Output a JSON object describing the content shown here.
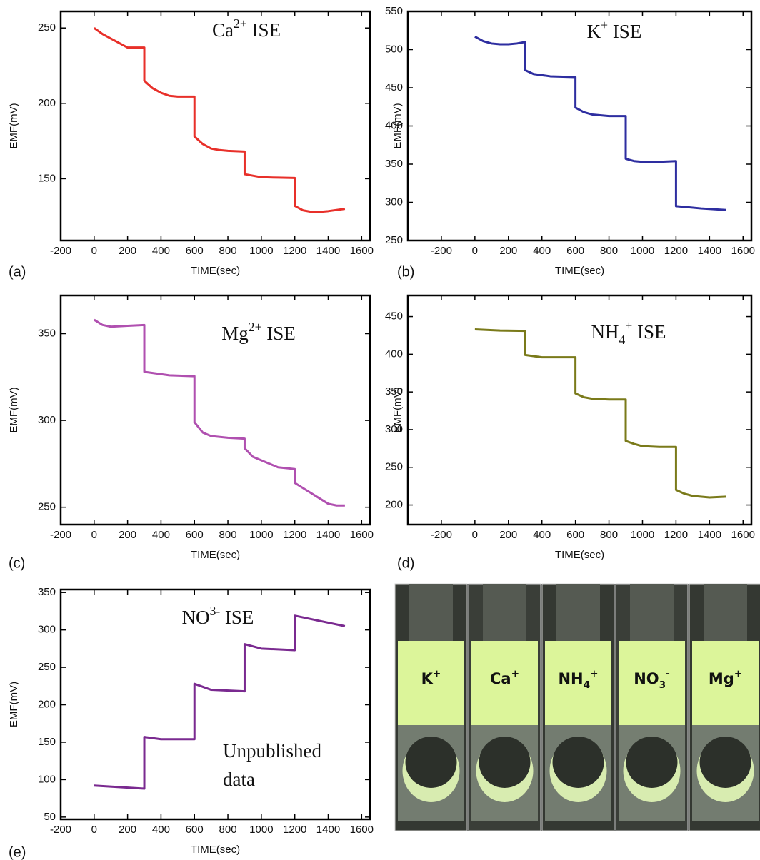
{
  "chart_data": [
    {
      "type": "line",
      "panel_label": "(a)",
      "title": [
        {
          "text": "Ca"
        },
        {
          "text": "2+",
          "sup": true
        },
        {
          "text": " ISE"
        }
      ],
      "xlabel": "TIME(sec)",
      "ylabel": "EMF(mV)",
      "xlim": [
        -200,
        1650
      ],
      "xticks": [
        -200,
        0,
        200,
        400,
        600,
        800,
        1000,
        1200,
        1400,
        1600
      ],
      "ylim": [
        109,
        261
      ],
      "yticks": [
        150,
        200,
        250
      ],
      "series": [
        {
          "color": "#e8302a",
          "x": [
            0,
            50,
            100,
            150,
            200,
            250,
            300,
            300,
            350,
            400,
            450,
            500,
            600,
            600,
            650,
            700,
            750,
            800,
            900,
            900,
            950,
            1000,
            1100,
            1200,
            1200,
            1250,
            1300,
            1350,
            1400,
            1500
          ],
          "values": [
            250,
            246,
            243,
            240,
            237,
            237,
            237,
            215,
            210,
            207,
            205,
            204.5,
            204.5,
            178,
            173,
            170,
            169,
            168.5,
            168,
            153,
            152,
            151,
            150.7,
            150.5,
            132,
            129,
            128,
            128,
            128.5,
            130
          ]
        }
      ]
    },
    {
      "type": "line",
      "panel_label": "(b)",
      "title": [
        {
          "text": "K"
        },
        {
          "text": "+",
          "sup": true
        },
        {
          "text": " ISE"
        }
      ],
      "xlabel": "TIME(sec)",
      "ylabel": "EMF(mV)",
      "xlim": [
        -400,
        1650
      ],
      "xticks": [
        -200,
        0,
        200,
        400,
        600,
        800,
        1000,
        1200,
        1400,
        1600
      ],
      "ylim": [
        250,
        550
      ],
      "yticks": [
        250,
        300,
        350,
        400,
        450,
        500,
        550
      ],
      "series": [
        {
          "color": "#2e2ea0",
          "x": [
            0,
            50,
            100,
            150,
            200,
            250,
            300,
            300,
            350,
            450,
            600,
            600,
            650,
            700,
            800,
            900,
            900,
            950,
            1000,
            1100,
            1200,
            1200,
            1250,
            1350,
            1500
          ],
          "values": [
            517,
            511,
            508,
            507,
            507,
            508,
            510,
            473,
            468,
            465,
            464,
            424,
            418,
            415,
            413,
            413,
            357,
            354,
            353,
            353,
            354,
            295,
            294,
            292,
            290
          ]
        }
      ]
    },
    {
      "type": "line",
      "panel_label": "(c)",
      "title": [
        {
          "text": "Mg"
        },
        {
          "text": "2+",
          "sup": true
        },
        {
          "text": " ISE"
        }
      ],
      "xlabel": "TIME(sec)",
      "ylabel": "EMF(mV)",
      "xlim": [
        -200,
        1650
      ],
      "xticks": [
        -200,
        0,
        200,
        400,
        600,
        800,
        1000,
        1200,
        1400,
        1600
      ],
      "ylim": [
        240,
        372
      ],
      "yticks": [
        250,
        300,
        350
      ],
      "series": [
        {
          "color": "#b050b0",
          "x": [
            0,
            50,
            100,
            200,
            300,
            300,
            450,
            600,
            600,
            650,
            700,
            800,
            900,
            900,
            950,
            1100,
            1200,
            1200,
            1300,
            1400,
            1450,
            1500
          ],
          "values": [
            358,
            355,
            354,
            354.5,
            355,
            328,
            326,
            325.5,
            299,
            293,
            291,
            290,
            289.5,
            284,
            279,
            273,
            272,
            264,
            258,
            252,
            251,
            251
          ]
        }
      ]
    },
    {
      "type": "line",
      "panel_label": "(d)",
      "title": [
        {
          "text": "NH"
        },
        {
          "text": "4",
          "sub": true
        },
        {
          "text": "+",
          "sup": true
        },
        {
          "text": " ISE"
        }
      ],
      "xlabel": "TIME(sec)",
      "ylabel": "EMF(mV)",
      "xlim": [
        -400,
        1650
      ],
      "xticks": [
        -200,
        0,
        200,
        400,
        600,
        800,
        1000,
        1200,
        1400,
        1600
      ],
      "ylim": [
        174,
        478
      ],
      "yticks": [
        200,
        250,
        300,
        350,
        400,
        450
      ],
      "series": [
        {
          "color": "#7a7a1a",
          "x": [
            0,
            150,
            300,
            300,
            400,
            600,
            600,
            650,
            700,
            800,
            900,
            900,
            950,
            1000,
            1100,
            1200,
            1200,
            1250,
            1300,
            1400,
            1500
          ],
          "values": [
            433,
            431.5,
            431,
            399,
            396,
            396,
            348,
            343,
            341,
            340,
            340,
            285,
            281,
            278,
            277,
            277,
            220,
            215,
            212,
            210,
            211
          ]
        }
      ]
    },
    {
      "type": "line",
      "panel_label": "(e)",
      "title": [
        {
          "text": "NO"
        },
        {
          "text": "3-",
          "sup": true
        },
        {
          "text": " ISE"
        }
      ],
      "annotation": [
        "Unpublished",
        "data"
      ],
      "annotation_color": "#7a2a90",
      "xlabel": "TIME(sec)",
      "ylabel": "EMF(mV)",
      "xlim": [
        -200,
        1650
      ],
      "xticks": [
        -200,
        0,
        200,
        400,
        600,
        800,
        1000,
        1200,
        1400,
        1600
      ],
      "ylim": [
        47,
        354
      ],
      "yticks": [
        50,
        100,
        150,
        200,
        250,
        300,
        350
      ],
      "series": [
        {
          "color": "#7a2a90",
          "x": [
            0,
            150,
            300,
            300,
            400,
            600,
            600,
            700,
            900,
            900,
            1000,
            1200,
            1200,
            1350,
            1500
          ],
          "values": [
            92,
            90,
            88,
            157,
            154,
            154,
            228,
            220,
            218,
            281,
            275,
            273,
            319,
            312,
            305
          ]
        }
      ]
    }
  ],
  "photo": {
    "labels": [
      [
        {
          "text": "K"
        },
        {
          "text": "+",
          "sup": true
        }
      ],
      [
        {
          "text": "Ca"
        },
        {
          "text": "+",
          "sup": true
        }
      ],
      [
        {
          "text": "NH"
        },
        {
          "text": "4",
          "sub": true
        },
        {
          "text": "+",
          "sup": true
        }
      ],
      [
        {
          "text": "NO"
        },
        {
          "text": "3",
          "sub": true
        },
        {
          "text": "-",
          "sup": true
        }
      ],
      [
        {
          "text": "Mg"
        },
        {
          "text": "+",
          "sup": true
        }
      ]
    ]
  }
}
